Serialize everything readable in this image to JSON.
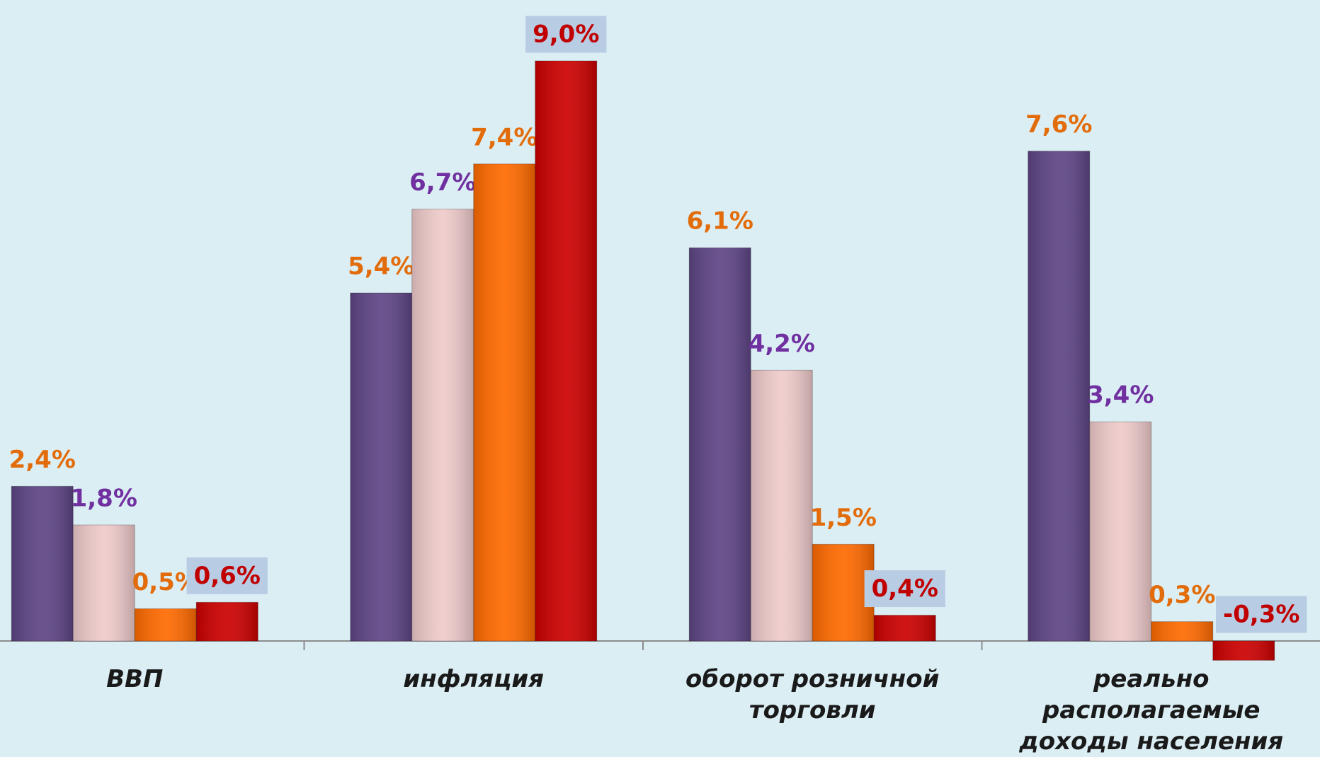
{
  "chart_data": {
    "type": "bar",
    "categories": [
      "ВВП",
      "инфляция",
      "оборот розничной торговли",
      "реально располагаемые доходы населения"
    ],
    "series": [
      {
        "color": "#5e4585",
        "label_color": "#e36c0a",
        "values": [
          2.4,
          5.4,
          6.1,
          7.6
        ],
        "value_labels": [
          "2,4%",
          "5,4%",
          "6,1%",
          "7,6%"
        ]
      },
      {
        "color": "#efcaca",
        "label_color": "#7030a0",
        "values": [
          1.8,
          6.7,
          4.2,
          3.4
        ],
        "value_labels": [
          "1,8%",
          "6,7%",
          "4,2%",
          "3,4%"
        ]
      },
      {
        "color": "#ff6a00",
        "label_color": "#e36c0a",
        "values": [
          0.5,
          7.4,
          1.5,
          0.3
        ],
        "value_labels": [
          "0,5%",
          "7,4%",
          "1,5%",
          "0,3%"
        ]
      },
      {
        "color": "#cc0000",
        "label_color": "#c00000",
        "label_box": "#b8cce4",
        "values": [
          0.6,
          9.0,
          0.4,
          -0.3
        ],
        "value_labels": [
          "0,6%",
          "9,0%",
          "0,4%",
          "-0,3%"
        ]
      }
    ]
  }
}
